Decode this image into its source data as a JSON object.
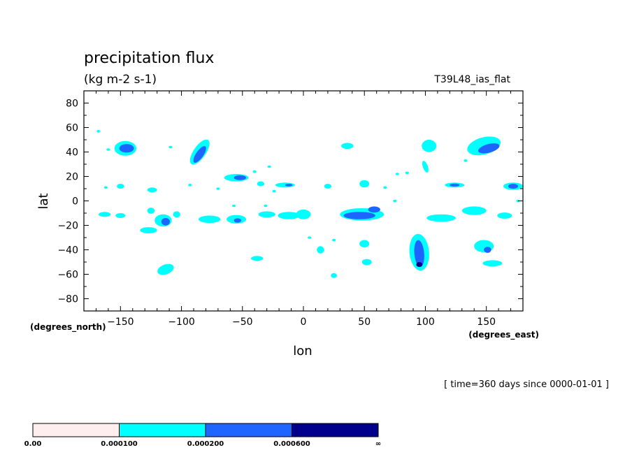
{
  "chart_data": {
    "type": "heatmap",
    "title": "precipitation flux",
    "units": "(kg m-2 s-1)",
    "run_label": "T39L48_ias_flat",
    "xlabel": "lon",
    "ylabel": "lat",
    "x_units": "(degrees_east)",
    "y_units": "(degrees_north)",
    "time_label": "[ time=360 days since 0000-01-01 ]",
    "xlim": [
      -180,
      180
    ],
    "ylim": [
      -90,
      90
    ],
    "x_ticks": [
      {
        "value": -150,
        "label": "−150"
      },
      {
        "value": -100,
        "label": "−100"
      },
      {
        "value": -50,
        "label": "−50"
      },
      {
        "value": 0,
        "label": "0"
      },
      {
        "value": 50,
        "label": "50"
      },
      {
        "value": 100,
        "label": "100"
      },
      {
        "value": 150,
        "label": "150"
      }
    ],
    "y_ticks": [
      {
        "value": 80,
        "label": "80"
      },
      {
        "value": 60,
        "label": "60"
      },
      {
        "value": 40,
        "label": "40"
      },
      {
        "value": 20,
        "label": "20"
      },
      {
        "value": 0,
        "label": "0"
      },
      {
        "value": -20,
        "label": "−20"
      },
      {
        "value": -40,
        "label": "−40"
      },
      {
        "value": -60,
        "label": "−60"
      },
      {
        "value": -80,
        "label": "−80"
      }
    ],
    "levels": [
      {
        "label": "0.00",
        "color": "#ffeeee"
      },
      {
        "label": "0.000100",
        "color": "#00ffff"
      },
      {
        "label": "0.000200",
        "color": "#1e64ff"
      },
      {
        "label": "0.000600",
        "color": "#00008c"
      }
    ],
    "colorbar_end_label": "∞",
    "regions": [
      {
        "lon": -146,
        "lat": 43,
        "rx": 9,
        "ry": 6,
        "level": 1
      },
      {
        "lon": -145,
        "lat": 43,
        "rx": 6,
        "ry": 3.5,
        "level": 2
      },
      {
        "lon": -85,
        "lat": 40,
        "rx": 5,
        "ry": 12,
        "rot": 35,
        "level": 1
      },
      {
        "lon": -85,
        "lat": 38,
        "rx": 3,
        "ry": 8,
        "rot": 35,
        "level": 2
      },
      {
        "lon": -55,
        "lat": 19,
        "rx": 10,
        "ry": 3,
        "level": 1
      },
      {
        "lon": -52,
        "lat": 19,
        "rx": 5,
        "ry": 2,
        "level": 2
      },
      {
        "lon": 148,
        "lat": 45,
        "rx": 14,
        "ry": 7,
        "rot": -15,
        "level": 1
      },
      {
        "lon": 152,
        "lat": 43,
        "rx": 9,
        "ry": 3.5,
        "rot": -15,
        "level": 2
      },
      {
        "lon": 103,
        "lat": 45,
        "rx": 6,
        "ry": 5,
        "level": 1
      },
      {
        "lon": 36,
        "lat": 45,
        "rx": 5,
        "ry": 2.5,
        "level": 1
      },
      {
        "lon": -127,
        "lat": -24,
        "rx": 7,
        "ry": 2.5,
        "level": 1
      },
      {
        "lon": -115,
        "lat": -16,
        "rx": 7,
        "ry": 5,
        "level": 1
      },
      {
        "lon": -113,
        "lat": -17,
        "rx": 3.5,
        "ry": 3,
        "level": 2
      },
      {
        "lon": -163,
        "lat": -11,
        "rx": 5,
        "ry": 2,
        "level": 1
      },
      {
        "lon": -150,
        "lat": -12,
        "rx": 4,
        "ry": 2,
        "level": 1
      },
      {
        "lon": -125,
        "lat": -8,
        "rx": 3,
        "ry": 2.5,
        "level": 1
      },
      {
        "lon": -77,
        "lat": -15,
        "rx": 9,
        "ry": 3,
        "level": 1
      },
      {
        "lon": -55,
        "lat": -15,
        "rx": 8,
        "ry": 3.5,
        "level": 1
      },
      {
        "lon": -54,
        "lat": -16,
        "rx": 3,
        "ry": 1.8,
        "level": 2
      },
      {
        "lon": -30,
        "lat": -11,
        "rx": 7,
        "ry": 2.5,
        "level": 1
      },
      {
        "lon": -12,
        "lat": -12,
        "rx": 9,
        "ry": 3,
        "level": 1
      },
      {
        "lon": 0,
        "lat": -11,
        "rx": 6,
        "ry": 4,
        "level": 1
      },
      {
        "lon": 48,
        "lat": -11,
        "rx": 18,
        "ry": 5,
        "level": 1
      },
      {
        "lon": 46,
        "lat": -12,
        "rx": 13,
        "ry": 3,
        "level": 2
      },
      {
        "lon": 58,
        "lat": -7,
        "rx": 5,
        "ry": 2.5,
        "level": 2
      },
      {
        "lon": 113,
        "lat": -14,
        "rx": 12,
        "ry": 3,
        "level": 1
      },
      {
        "lon": 140,
        "lat": -8,
        "rx": 10,
        "ry": 3.5,
        "level": 1
      },
      {
        "lon": 95,
        "lat": -42,
        "rx": 8,
        "ry": 15,
        "rot": -5,
        "level": 1
      },
      {
        "lon": 95,
        "lat": -43,
        "rx": 4,
        "ry": 11,
        "rot": -5,
        "level": 2
      },
      {
        "lon": 95,
        "lat": -52,
        "rx": 2.5,
        "ry": 2,
        "level": 3
      },
      {
        "lon": 148,
        "lat": -37,
        "rx": 8,
        "ry": 5,
        "level": 1
      },
      {
        "lon": 151,
        "lat": -40,
        "rx": 3,
        "ry": 2.5,
        "level": 2
      },
      {
        "lon": 155,
        "lat": -51,
        "rx": 8,
        "ry": 2.5,
        "level": 1
      },
      {
        "lon": -113,
        "lat": -56,
        "rx": 7,
        "ry": 4,
        "rot": -20,
        "level": 1
      },
      {
        "lon": 52,
        "lat": -50,
        "rx": 4,
        "ry": 2.5,
        "level": 1
      },
      {
        "lon": 50,
        "lat": -35,
        "rx": 4,
        "ry": 3,
        "level": 1
      },
      {
        "lon": 25,
        "lat": -61,
        "rx": 2.5,
        "ry": 2,
        "level": 1
      },
      {
        "lon": -38,
        "lat": -47,
        "rx": 5,
        "ry": 2,
        "level": 1
      },
      {
        "lon": 14,
        "lat": -40,
        "rx": 3,
        "ry": 3,
        "level": 1
      },
      {
        "lon": 124,
        "lat": 13,
        "rx": 8,
        "ry": 2,
        "level": 1
      },
      {
        "lon": 124,
        "lat": 13,
        "rx": 4,
        "ry": 1.2,
        "level": 2
      },
      {
        "lon": 172,
        "lat": 12,
        "rx": 8,
        "ry": 3,
        "level": 1
      },
      {
        "lon": 172,
        "lat": 12,
        "rx": 4,
        "ry": 2,
        "level": 2
      },
      {
        "lon": -15,
        "lat": 13,
        "rx": 8,
        "ry": 2,
        "level": 1
      },
      {
        "lon": -12,
        "lat": 13,
        "rx": 3,
        "ry": 1,
        "level": 2
      },
      {
        "lon": 50,
        "lat": 14,
        "rx": 4,
        "ry": 3,
        "level": 1
      },
      {
        "lon": -150,
        "lat": 12,
        "rx": 3,
        "ry": 2,
        "level": 1
      },
      {
        "lon": -124,
        "lat": 9,
        "rx": 4,
        "ry": 2,
        "level": 1
      },
      {
        "lon": 100,
        "lat": 28,
        "rx": 2,
        "ry": 5,
        "rot": -20,
        "level": 1
      },
      {
        "lon": 20,
        "lat": 12,
        "rx": 3,
        "ry": 2,
        "level": 1
      },
      {
        "lon": -35,
        "lat": 14,
        "rx": 3,
        "ry": 2,
        "level": 1
      },
      {
        "lon": 165,
        "lat": -12,
        "rx": 6,
        "ry": 2.5,
        "level": 1
      },
      {
        "lon": -104,
        "lat": -11,
        "rx": 3,
        "ry": 2.5,
        "level": 1
      }
    ],
    "specks": [
      {
        "lon": -168,
        "lat": 57
      },
      {
        "lon": -160,
        "lat": 42
      },
      {
        "lon": -109,
        "lat": 44
      },
      {
        "lon": -40,
        "lat": 24
      },
      {
        "lon": -28,
        "lat": 28
      },
      {
        "lon": -162,
        "lat": 11
      },
      {
        "lon": -57,
        "lat": -4
      },
      {
        "lon": -31,
        "lat": -4
      },
      {
        "lon": 67,
        "lat": 11
      },
      {
        "lon": 77,
        "lat": 22
      },
      {
        "lon": 85,
        "lat": 23
      },
      {
        "lon": 75,
        "lat": 0
      },
      {
        "lon": 25,
        "lat": -32
      },
      {
        "lon": 133,
        "lat": 33
      },
      {
        "lon": 176,
        "lat": 0
      },
      {
        "lon": -93,
        "lat": 13
      },
      {
        "lon": -70,
        "lat": 10
      },
      {
        "lon": 5,
        "lat": -30
      },
      {
        "lon": -24,
        "lat": 8
      }
    ]
  }
}
